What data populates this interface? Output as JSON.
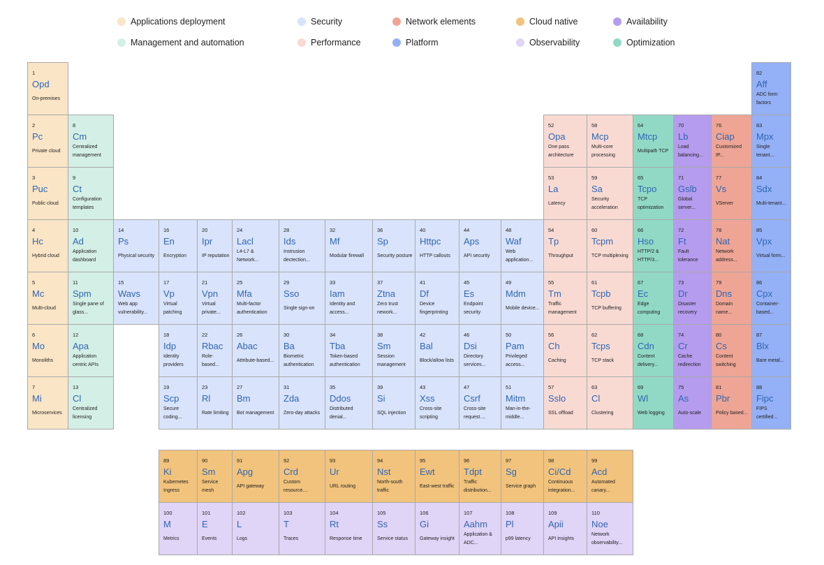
{
  "legend": [
    {
      "label": "Applications deployment",
      "key": "app",
      "color": "#fae5c6"
    },
    {
      "label": "Security",
      "key": "sec",
      "color": "#d9e3fc"
    },
    {
      "label": "Network elements",
      "key": "net",
      "color": "#eea595"
    },
    {
      "label": "Cloud native",
      "key": "cloud",
      "color": "#f2c37c"
    },
    {
      "label": "Availability",
      "key": "avail",
      "color": "#b59cee"
    },
    {
      "label": "Management and automation",
      "key": "mgmt",
      "color": "#d4efe5"
    },
    {
      "label": "Performance",
      "key": "perf",
      "color": "#f8dad3"
    },
    {
      "label": "Platform",
      "key": "plat",
      "color": "#94b0f6"
    },
    {
      "label": "Observability",
      "key": "obs",
      "color": "#e0d4f7"
    },
    {
      "label": "Optimization",
      "key": "opt",
      "color": "#91d9c5"
    }
  ],
  "elements": [
    {
      "n": "1",
      "sym": "Opd",
      "name": "On-premises",
      "cat": "app"
    },
    {
      "n": "2",
      "sym": "Pc",
      "name": "Private cloud",
      "cat": "app"
    },
    {
      "n": "3",
      "sym": "Puc",
      "name": "Public cloud",
      "cat": "app"
    },
    {
      "n": "4",
      "sym": "Hc",
      "name": "Hybrid cloud",
      "cat": "app"
    },
    {
      "n": "5",
      "sym": "Mc",
      "name": "Multi-cloud",
      "cat": "app"
    },
    {
      "n": "6",
      "sym": "Mo",
      "name": "Monoliths",
      "cat": "app"
    },
    {
      "n": "7",
      "sym": "Mi",
      "name": "Microservices",
      "cat": "app"
    },
    {
      "n": "8",
      "sym": "Cm",
      "name": "Centralized management",
      "cat": "mgmt"
    },
    {
      "n": "9",
      "sym": "Ct",
      "name": "Configuration templates",
      "cat": "mgmt"
    },
    {
      "n": "10",
      "sym": "Ad",
      "name": "Application dashboard",
      "cat": "mgmt"
    },
    {
      "n": "11",
      "sym": "Spm",
      "name": "Single pane of glass...",
      "cat": "mgmt"
    },
    {
      "n": "12",
      "sym": "Apa",
      "name": "Application centric APIs",
      "cat": "mgmt"
    },
    {
      "n": "13",
      "sym": "Cl",
      "name": "Centralized licensing",
      "cat": "mgmt"
    },
    {
      "n": "14",
      "sym": "Ps",
      "name": "Physical security",
      "cat": "sec"
    },
    {
      "n": "15",
      "sym": "Wavs",
      "name": "Web app vulnerability...",
      "cat": "sec"
    },
    {
      "n": "16",
      "sym": "En",
      "name": "Encryption",
      "cat": "sec"
    },
    {
      "n": "17",
      "sym": "Vp",
      "name": "Virtual patching",
      "cat": "sec"
    },
    {
      "n": "18",
      "sym": "Idp",
      "name": "Identity providers",
      "cat": "sec"
    },
    {
      "n": "19",
      "sym": "Scp",
      "name": "Secure coding...",
      "cat": "sec"
    },
    {
      "n": "20",
      "sym": "Ipr",
      "name": "IP reputation",
      "cat": "sec"
    },
    {
      "n": "21",
      "sym": "Vpn",
      "name": "Virtual private...",
      "cat": "sec"
    },
    {
      "n": "22",
      "sym": "Rbac",
      "name": "Role-based...",
      "cat": "sec"
    },
    {
      "n": "23",
      "sym": "Rl",
      "name": "Rate limiting",
      "cat": "sec"
    },
    {
      "n": "24",
      "sym": "Lacl",
      "name": "L4-L7 & Network...",
      "cat": "sec"
    },
    {
      "n": "25",
      "sym": "Mfa",
      "name": "Multi-factor authentication",
      "cat": "sec"
    },
    {
      "n": "26",
      "sym": "Abac",
      "name": "Attribute-based...",
      "cat": "sec"
    },
    {
      "n": "27",
      "sym": "Bm",
      "name": "Bot management",
      "cat": "sec"
    },
    {
      "n": "28",
      "sym": "Ids",
      "name": "Instrusion dectection...",
      "cat": "sec"
    },
    {
      "n": "29",
      "sym": "Sso",
      "name": "Single sign-on",
      "cat": "sec"
    },
    {
      "n": "30",
      "sym": "Ba",
      "name": "Biometric authentication",
      "cat": "sec"
    },
    {
      "n": "31",
      "sym": "Zda",
      "name": "Zero-day attacks",
      "cat": "sec"
    },
    {
      "n": "32",
      "sym": "Mf",
      "name": "Modular firewall",
      "cat": "sec"
    },
    {
      "n": "33",
      "sym": "Iam",
      "name": "Identity and access...",
      "cat": "sec"
    },
    {
      "n": "34",
      "sym": "Tba",
      "name": "Token-based authentication",
      "cat": "sec"
    },
    {
      "n": "35",
      "sym": "Ddos",
      "name": "Distributed denial...",
      "cat": "sec"
    },
    {
      "n": "36",
      "sym": "Sp",
      "name": "Security posture",
      "cat": "sec"
    },
    {
      "n": "37",
      "sym": "Ztna",
      "name": "Zero trust nework...",
      "cat": "sec"
    },
    {
      "n": "38",
      "sym": "Sm",
      "name": "Session management",
      "cat": "sec"
    },
    {
      "n": "39",
      "sym": "Si",
      "name": "SQL injection",
      "cat": "sec"
    },
    {
      "n": "40",
      "sym": "Httpc",
      "name": "HTTP callouts",
      "cat": "sec"
    },
    {
      "n": "41",
      "sym": "Df",
      "name": "Device fingerprinting",
      "cat": "sec"
    },
    {
      "n": "42",
      "sym": "Bal",
      "name": "Block/allow lists",
      "cat": "sec"
    },
    {
      "n": "43",
      "sym": "Xss",
      "name": "Cross-site scripting",
      "cat": "sec"
    },
    {
      "n": "44",
      "sym": "Aps",
      "name": "API security",
      "cat": "sec"
    },
    {
      "n": "45",
      "sym": "Es",
      "name": "Endpoint security",
      "cat": "sec"
    },
    {
      "n": "46",
      "sym": "Dsi",
      "name": "Directory services...",
      "cat": "sec"
    },
    {
      "n": "47",
      "sym": "Csrf",
      "name": "Cross-site request....",
      "cat": "sec"
    },
    {
      "n": "48",
      "sym": "Waf",
      "name": "Web application...",
      "cat": "sec"
    },
    {
      "n": "49",
      "sym": "Mdm",
      "name": "Mobile device...",
      "cat": "sec"
    },
    {
      "n": "50",
      "sym": "Pam",
      "name": "Privileged access...",
      "cat": "sec"
    },
    {
      "n": "51",
      "sym": "Mitm",
      "name": "Man-in-the-middle...",
      "cat": "sec"
    },
    {
      "n": "52",
      "sym": "Opa",
      "name": "One pass architecture",
      "cat": "perf"
    },
    {
      "n": "53",
      "sym": "La",
      "name": "Latency",
      "cat": "perf"
    },
    {
      "n": "54",
      "sym": "Tp",
      "name": "Throughput",
      "cat": "perf"
    },
    {
      "n": "55",
      "sym": "Tm",
      "name": "Traffic management",
      "cat": "perf"
    },
    {
      "n": "56",
      "sym": "Ch",
      "name": "Caching",
      "cat": "perf"
    },
    {
      "n": "57",
      "sym": "Sslo",
      "name": "SSL offload",
      "cat": "perf"
    },
    {
      "n": "58",
      "sym": "Mcp",
      "name": "Multi-core processing",
      "cat": "perf"
    },
    {
      "n": "59",
      "sym": "Sa",
      "name": "Security acceleration",
      "cat": "perf"
    },
    {
      "n": "60",
      "sym": "Tcpm",
      "name": "TCP multiplexing",
      "cat": "perf"
    },
    {
      "n": "61",
      "sym": "Tcpb",
      "name": "TCP buffering",
      "cat": "perf"
    },
    {
      "n": "62",
      "sym": "Tcps",
      "name": "TCP stack",
      "cat": "perf"
    },
    {
      "n": "63",
      "sym": "Cl",
      "name": "Clustering",
      "cat": "perf"
    },
    {
      "n": "64",
      "sym": "Mtcp",
      "name": "Multipath TCP",
      "cat": "opt"
    },
    {
      "n": "65",
      "sym": "Tcpo",
      "name": "TCP optimization",
      "cat": "opt"
    },
    {
      "n": "66",
      "sym": "Hso",
      "name": "HTTP/2 & HTTP/3...",
      "cat": "opt"
    },
    {
      "n": "67",
      "sym": "Ec",
      "name": "Edge computing",
      "cat": "opt"
    },
    {
      "n": "68",
      "sym": "Cdn",
      "name": "Content delivery...",
      "cat": "opt"
    },
    {
      "n": "69",
      "sym": "Wl",
      "name": "Web logging",
      "cat": "opt"
    },
    {
      "n": "70",
      "sym": "Lb",
      "name": "Load balancing...",
      "cat": "avail"
    },
    {
      "n": "71",
      "sym": "Gslb",
      "name": "Global server...",
      "cat": "avail"
    },
    {
      "n": "72",
      "sym": "Ft",
      "name": "Fault tolerance",
      "cat": "avail"
    },
    {
      "n": "73",
      "sym": "Dr",
      "name": "Disaster recovery",
      "cat": "avail"
    },
    {
      "n": "74",
      "sym": "Cr",
      "name": "Cache redirection",
      "cat": "avail"
    },
    {
      "n": "75",
      "sym": "As",
      "name": "Auto-scale",
      "cat": "avail"
    },
    {
      "n": "76",
      "sym": "Ciap",
      "name": "Customized IP...",
      "cat": "net"
    },
    {
      "n": "77",
      "sym": "Vs",
      "name": "VServer",
      "cat": "net"
    },
    {
      "n": "78",
      "sym": "Nat",
      "name": "Network address...",
      "cat": "net"
    },
    {
      "n": "79",
      "sym": "Dns",
      "name": "Domain name...",
      "cat": "net"
    },
    {
      "n": "80",
      "sym": "Cs",
      "name": "Content switching",
      "cat": "net"
    },
    {
      "n": "81",
      "sym": "Pbr",
      "name": "Policy based...",
      "cat": "net"
    },
    {
      "n": "82",
      "sym": "Aff",
      "name": "ADC form factors",
      "cat": "plat"
    },
    {
      "n": "83",
      "sym": "Mpx",
      "name": "Single tenant...",
      "cat": "plat"
    },
    {
      "n": "84",
      "sym": "Sdx",
      "name": "Multi-tenant...",
      "cat": "plat"
    },
    {
      "n": "85",
      "sym": "Vpx",
      "name": "Virtual form...",
      "cat": "plat"
    },
    {
      "n": "86",
      "sym": "Cpx",
      "name": "Container-based...",
      "cat": "plat"
    },
    {
      "n": "87",
      "sym": "Blx",
      "name": "Bare metal...",
      "cat": "plat"
    },
    {
      "n": "88",
      "sym": "Fipc",
      "name": "FIPS certified...",
      "cat": "plat"
    },
    {
      "n": "89",
      "sym": "Ki",
      "name": "Kubernetes Ingress",
      "cat": "cloud"
    },
    {
      "n": "90",
      "sym": "Sm",
      "name": "Service mesh",
      "cat": "cloud"
    },
    {
      "n": "91",
      "sym": "Apg",
      "name": "API gateway",
      "cat": "cloud"
    },
    {
      "n": "92",
      "sym": "Crd",
      "name": "Custom resource....",
      "cat": "cloud"
    },
    {
      "n": "93",
      "sym": "Ur",
      "name": "URL routing",
      "cat": "cloud"
    },
    {
      "n": "94",
      "sym": "Nst",
      "name": "North-south traffic",
      "cat": "cloud"
    },
    {
      "n": "95",
      "sym": "Ewt",
      "name": "East-west traffic",
      "cat": "cloud"
    },
    {
      "n": "96",
      "sym": "Tdpt",
      "name": "Traffic distribution...",
      "cat": "cloud"
    },
    {
      "n": "97",
      "sym": "Sg",
      "name": "Service graph",
      "cat": "cloud"
    },
    {
      "n": "98",
      "sym": "Ci/Cd",
      "name": "Continuous integration...",
      "cat": "cloud"
    },
    {
      "n": "99",
      "sym": "Acd",
      "name": "Automated canary...",
      "cat": "cloud"
    },
    {
      "n": "100",
      "sym": "M",
      "name": "Metrics",
      "cat": "obs"
    },
    {
      "n": "101",
      "sym": "E",
      "name": "Events",
      "cat": "obs"
    },
    {
      "n": "102",
      "sym": "L",
      "name": "Logs",
      "cat": "obs"
    },
    {
      "n": "103",
      "sym": "T",
      "name": "Traces",
      "cat": "obs"
    },
    {
      "n": "104",
      "sym": "Rt",
      "name": "Response time",
      "cat": "obs"
    },
    {
      "n": "105",
      "sym": "Ss",
      "name": "Service status",
      "cat": "obs"
    },
    {
      "n": "106",
      "sym": "Gi",
      "name": "Gateway insight",
      "cat": "obs"
    },
    {
      "n": "107",
      "sym": "Aahm",
      "name": "Application & ADC...",
      "cat": "obs"
    },
    {
      "n": "108",
      "sym": "Pl",
      "name": "p99 latency",
      "cat": "obs"
    },
    {
      "n": "109",
      "sym": "Apii",
      "name": "API insights",
      "cat": "obs"
    },
    {
      "n": "110",
      "sym": "Noe",
      "name": "Network observability...",
      "cat": "obs"
    }
  ]
}
